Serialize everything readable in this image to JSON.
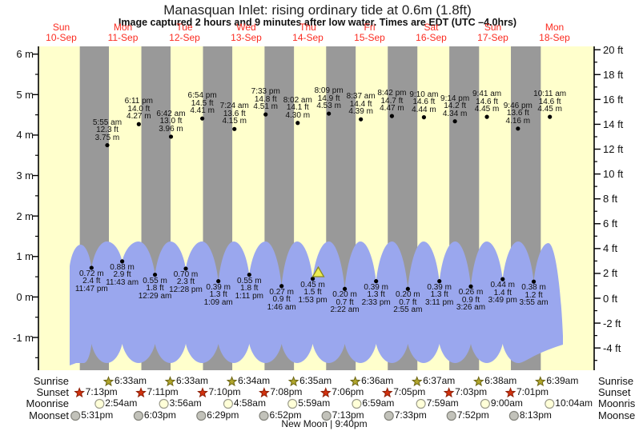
{
  "header": {
    "title": "Manasquan Inlet: rising  ordinary tide at 0.6m (1.8ft)",
    "subtitle": "Image captured 2 hours and 9 minutes after low water. Times are EDT (UTC –4.0hrs)"
  },
  "days": [
    {
      "dow": "Sun",
      "date": "10-Sep"
    },
    {
      "dow": "Mon",
      "date": "11-Sep"
    },
    {
      "dow": "Tue",
      "date": "12-Sep"
    },
    {
      "dow": "Wed",
      "date": "13-Sep"
    },
    {
      "dow": "Thu",
      "date": "14-Sep"
    },
    {
      "dow": "Fri",
      "date": "15-Sep"
    },
    {
      "dow": "Sat",
      "date": "16-Sep"
    },
    {
      "dow": "Sun",
      "date": "17-Sep"
    },
    {
      "dow": "Mon",
      "date": "18-Sep"
    }
  ],
  "chart_data": {
    "type": "area",
    "title": "Manasquan Inlet: rising  ordinary tide at 0.6m (1.8ft)",
    "x_categories": [
      "Sun 10-Sep",
      "Mon 11-Sep",
      "Tue 12-Sep",
      "Wed 13-Sep",
      "Thu 14-Sep",
      "Fri 15-Sep",
      "Sat 16-Sep",
      "Sun 17-Sep",
      "Mon 18-Sep"
    ],
    "y_axis_left": {
      "unit": "m",
      "ticks": [
        6,
        5,
        4,
        3,
        2,
        1,
        0,
        -1
      ]
    },
    "y_axis_right": {
      "unit": "ft",
      "ticks": [
        20,
        18,
        16,
        14,
        12,
        10,
        8,
        6,
        4,
        2,
        0,
        -2,
        -4
      ]
    },
    "tide_events": [
      {
        "day": 0,
        "time": "11:47 pm",
        "m": "0.72",
        "ft": "2.4",
        "type": "low"
      },
      {
        "day": 1,
        "time": "5:55 am",
        "m": "3.75",
        "ft": "12.3",
        "type": "high"
      },
      {
        "day": 1,
        "time": "11:43 am",
        "m": "0.88",
        "ft": "2.9",
        "type": "low"
      },
      {
        "day": 1,
        "time": "6:11 pm",
        "m": "4.27",
        "ft": "14.0",
        "type": "high"
      },
      {
        "day": 2,
        "time": "12:29 am",
        "m": "0.55",
        "ft": "1.8",
        "type": "low"
      },
      {
        "day": 2,
        "time": "6:42 am",
        "m": "3.96",
        "ft": "13.0",
        "type": "high"
      },
      {
        "day": 2,
        "time": "12:28 pm",
        "m": "0.70",
        "ft": "2.3",
        "type": "low"
      },
      {
        "day": 2,
        "time": "6:54 pm",
        "m": "4.41",
        "ft": "14.5",
        "type": "high"
      },
      {
        "day": 3,
        "time": "1:09 am",
        "m": "0.39",
        "ft": "1.3",
        "type": "low"
      },
      {
        "day": 3,
        "time": "7:24 am",
        "m": "4.15",
        "ft": "13.6",
        "type": "high"
      },
      {
        "day": 3,
        "time": "1:11 pm",
        "m": "0.55",
        "ft": "1.8",
        "type": "low"
      },
      {
        "day": 3,
        "time": "7:33 pm",
        "m": "4.51",
        "ft": "14.8",
        "type": "high"
      },
      {
        "day": 4,
        "time": "1:46 am",
        "m": "0.27",
        "ft": "0.9",
        "type": "low"
      },
      {
        "day": 4,
        "time": "8:02 am",
        "m": "4.30",
        "ft": "14.1",
        "type": "high"
      },
      {
        "day": 4,
        "time": "1:53 pm",
        "m": "0.45",
        "ft": "1.5",
        "type": "low"
      },
      {
        "day": 4,
        "time": "8:09 pm",
        "m": "4.53",
        "ft": "14.9",
        "type": "high"
      },
      {
        "day": 5,
        "time": "2:22 am",
        "m": "0.20",
        "ft": "0.7",
        "type": "low"
      },
      {
        "day": 5,
        "time": "8:37 am",
        "m": "4.39",
        "ft": "14.4",
        "type": "high"
      },
      {
        "day": 5,
        "time": "2:33 pm",
        "m": "0.39",
        "ft": "1.3",
        "type": "low"
      },
      {
        "day": 5,
        "time": "8:42 pm",
        "m": "4.47",
        "ft": "14.7",
        "type": "high"
      },
      {
        "day": 6,
        "time": "2:55 am",
        "m": "0.20",
        "ft": "0.7",
        "type": "low"
      },
      {
        "day": 6,
        "time": "9:10 am",
        "m": "4.44",
        "ft": "14.6",
        "type": "high"
      },
      {
        "day": 6,
        "time": "3:11 pm",
        "m": "0.39",
        "ft": "1.3",
        "type": "low"
      },
      {
        "day": 6,
        "time": "9:14 pm",
        "m": "4.34",
        "ft": "14.2",
        "type": "high"
      },
      {
        "day": 7,
        "time": "3:26 am",
        "m": "0.26",
        "ft": "0.9",
        "type": "low"
      },
      {
        "day": 7,
        "time": "9:41 am",
        "m": "4.45",
        "ft": "14.6",
        "type": "high"
      },
      {
        "day": 7,
        "time": "3:49 pm",
        "m": "0.44",
        "ft": "1.4",
        "type": "low"
      },
      {
        "day": 7,
        "time": "9:46 pm",
        "m": "4.16",
        "ft": "13.6",
        "type": "high"
      },
      {
        "day": 8,
        "time": "3:55 am",
        "m": "0.38",
        "ft": "1.2",
        "type": "low"
      },
      {
        "day": 8,
        "time": "10:11 am",
        "m": "4.45",
        "ft": "14.6",
        "type": "high"
      }
    ],
    "capture_marker": {
      "shape": "triangle-up",
      "day": 4,
      "time": "4:02 pm",
      "level_m": "0.6"
    }
  },
  "astro": {
    "rows": [
      {
        "label": "Sunrise",
        "icon": "sunrise-star",
        "entries": [
          {
            "day": 1,
            "time": "6:33am"
          },
          {
            "day": 2,
            "time": "6:33am"
          },
          {
            "day": 3,
            "time": "6:34am"
          },
          {
            "day": 4,
            "time": "6:35am"
          },
          {
            "day": 5,
            "time": "6:36am"
          },
          {
            "day": 6,
            "time": "6:37am"
          },
          {
            "day": 7,
            "time": "6:38am"
          },
          {
            "day": 8,
            "time": "6:39am"
          }
        ]
      },
      {
        "label": "Sunset",
        "icon": "sunset-star",
        "entries": [
          {
            "day": 0,
            "time": "7:13pm"
          },
          {
            "day": 1,
            "time": "7:11pm"
          },
          {
            "day": 2,
            "time": "7:10pm"
          },
          {
            "day": 3,
            "time": "7:08pm"
          },
          {
            "day": 4,
            "time": "7:06pm"
          },
          {
            "day": 5,
            "time": "7:05pm"
          },
          {
            "day": 6,
            "time": "7:03pm"
          },
          {
            "day": 7,
            "time": "7:01pm"
          }
        ]
      },
      {
        "label": "Moonrise",
        "icon": "moonrise-circle",
        "entries": [
          {
            "day": 1,
            "time": "2:54am"
          },
          {
            "day": 2,
            "time": "3:56am"
          },
          {
            "day": 3,
            "time": "4:58am"
          },
          {
            "day": 4,
            "time": "5:59am"
          },
          {
            "day": 5,
            "time": "6:59am"
          },
          {
            "day": 6,
            "time": "7:59am"
          },
          {
            "day": 7,
            "time": "9:00am"
          },
          {
            "day": 8,
            "time": "10:04am"
          }
        ]
      },
      {
        "label": "Moonset",
        "icon": "moonset-circle",
        "entries": [
          {
            "day": 0,
            "time": "5:31pm"
          },
          {
            "day": 1,
            "time": "6:03pm"
          },
          {
            "day": 2,
            "time": "6:29pm"
          },
          {
            "day": 3,
            "time": "6:52pm"
          },
          {
            "day": 4,
            "time": "7:13pm"
          },
          {
            "day": 5,
            "time": "7:33pm"
          },
          {
            "day": 6,
            "time": "7:52pm"
          },
          {
            "day": 7,
            "time": "8:13pm"
          }
        ]
      }
    ],
    "moon_phase": "New Moon | 9:40pm"
  },
  "colors": {
    "day_background": "#ffffcc",
    "night_band": "#999999",
    "water": "#9aa7ee",
    "day_label_red": "#fb2b20",
    "sunrise_star_fill": "#b1a62c",
    "sunrise_star_stroke": "#6b6414",
    "sunset_star_fill": "#d2310e",
    "sunset_star_stroke": "#8c1f06",
    "moonrise_fill": "#ffffd8",
    "moonrise_stroke": "#9a9a8a",
    "moonset_fill": "#c2c2ba",
    "moonset_stroke": "#83837b",
    "marker_fill": "#ecec52",
    "marker_stroke": "#8a8a20"
  }
}
